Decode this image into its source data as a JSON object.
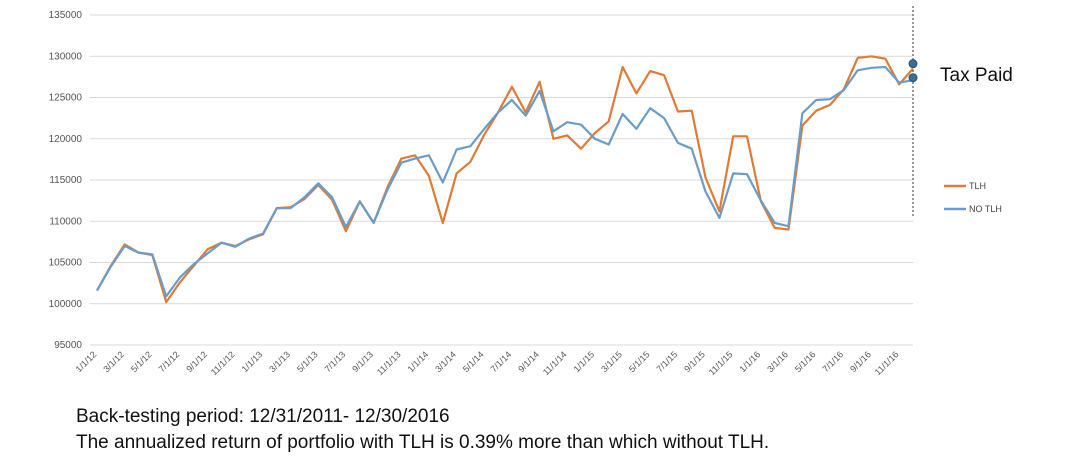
{
  "chart_data": {
    "type": "line",
    "ylim": [
      95000,
      135000
    ],
    "yticks": [
      "95000",
      "100000",
      "105000",
      "110000",
      "115000",
      "120000",
      "125000",
      "130000",
      "135000"
    ],
    "categories": [
      "1/1/12",
      "",
      "3/1/12",
      "",
      "5/1/12",
      "",
      "7/1/12",
      "",
      "9/1/12",
      "",
      "11/1/12",
      "",
      "1/1/13",
      "",
      "3/1/13",
      "",
      "5/1/13",
      "",
      "7/1/13",
      "",
      "9/1/13",
      "",
      "11/1/13",
      "",
      "1/1/14",
      "",
      "3/1/14",
      "",
      "5/1/14",
      "",
      "7/1/14",
      "",
      "9/1/14",
      "",
      "11/1/14",
      "",
      "1/1/15",
      "",
      "3/1/15",
      "",
      "5/1/15",
      "",
      "7/1/15",
      "",
      "9/1/15",
      "",
      "11/1/15",
      "",
      "1/1/16",
      "",
      "3/1/16",
      "",
      "5/1/16",
      "",
      "7/1/16",
      "",
      "9/1/16",
      "",
      "11/1/16",
      ""
    ],
    "series": [
      {
        "name": "TLH",
        "color": "#e07b35",
        "values": [
          101600,
          104600,
          107200,
          106200,
          105900,
          100200,
          102600,
          104600,
          106600,
          107400,
          107000,
          107800,
          108400,
          111600,
          111700,
          112700,
          114400,
          112600,
          108800,
          112400,
          109800,
          114100,
          117600,
          118000,
          115500,
          109800,
          115800,
          117200,
          120500,
          123200,
          126300,
          123200,
          126900,
          120000,
          120400,
          118800,
          120700,
          122100,
          128700,
          125500,
          128200,
          127700,
          123300,
          123400,
          115300,
          111200,
          120300,
          120300,
          112400,
          109200,
          109000,
          121600,
          123400,
          124100,
          126000,
          129800,
          130000,
          129700,
          126600,
          128500
        ],
        "end_marker": 127400
      },
      {
        "name": "NO TLH",
        "color": "#6a9cc9",
        "values": [
          101600,
          104500,
          107000,
          106200,
          106000,
          100900,
          103200,
          104800,
          106100,
          107400,
          106900,
          107900,
          108500,
          111600,
          111600,
          112900,
          114600,
          112900,
          109300,
          112400,
          109800,
          113800,
          117100,
          117600,
          118000,
          114700,
          118700,
          119100,
          121200,
          123200,
          124700,
          122800,
          125800,
          120900,
          122000,
          121700,
          120000,
          119300,
          123000,
          121200,
          123700,
          122500,
          119500,
          118800,
          113600,
          110400,
          115800,
          115700,
          112500,
          109800,
          109400,
          123100,
          124700,
          124800,
          125900,
          128300,
          128600,
          128700,
          126800,
          127100
        ],
        "end_marker": 129100
      }
    ],
    "annotation": "Tax Paid",
    "legend_position": "right",
    "grid": true
  },
  "caption": {
    "line1": "Back-testing period: 12/31/2011- 12/30/2016",
    "line2": "The annualized return of portfolio with TLH is 0.39% more than which without TLH."
  }
}
